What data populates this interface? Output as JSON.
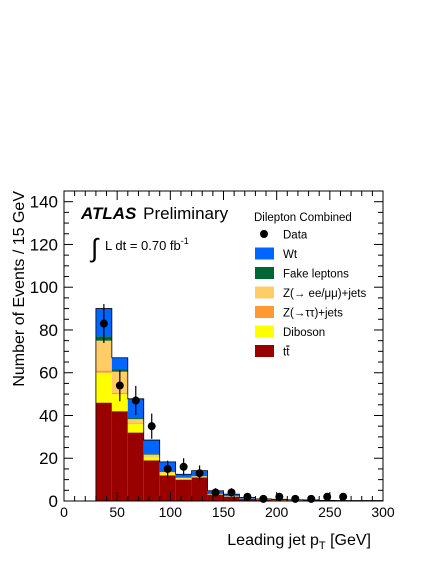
{
  "chart_data": {
    "type": "bar",
    "stacked": true,
    "xlabel_main": "Leading jet p",
    "xlabel_sub": "T",
    "xlabel_unit": " [GeV]",
    "ylabel": "Number of Events / 15 GeV",
    "xlim": [
      0,
      300
    ],
    "ylim": [
      0,
      145
    ],
    "xticks": [
      0,
      50,
      100,
      150,
      200,
      250,
      300
    ],
    "xtick_labels": [
      "0",
      "50",
      "100",
      "150",
      "200",
      "250",
      "300"
    ],
    "yticks": [
      0,
      20,
      40,
      60,
      80,
      100,
      120,
      140
    ],
    "ytick_labels": [
      "0",
      "20",
      "40",
      "60",
      "80",
      "100",
      "120",
      "140"
    ],
    "bin_edges": [
      30,
      45,
      60,
      75,
      90,
      105,
      120,
      135,
      150,
      165,
      180,
      195,
      210,
      225,
      240,
      255,
      270,
      285,
      300
    ],
    "series": [
      {
        "name": "tt",
        "color": "#990000",
        "values": [
          46,
          42,
          32,
          19,
          12,
          10,
          11,
          3,
          2,
          1,
          0.5,
          0.4,
          0.3,
          0.2,
          0.2,
          0.1,
          0.1,
          0.1
        ]
      },
      {
        "name": "Diboson",
        "color": "#ffff00",
        "values": [
          14,
          8,
          4,
          1.5,
          1,
          0.5,
          0.3,
          0.2,
          0.1,
          0.1,
          0.1,
          0.1,
          0.1,
          0.1,
          0,
          0,
          0,
          0
        ]
      },
      {
        "name": "Z(→ττ)+jets",
        "color": "#ff9933",
        "values": [
          1,
          0.5,
          0.3,
          0.2,
          0.1,
          0.1,
          0.1,
          0,
          0,
          0,
          0,
          0,
          0,
          0,
          0,
          0,
          0,
          0
        ]
      },
      {
        "name": "Z(→ ee/μμ)+jets",
        "color": "#ffcc66",
        "values": [
          14,
          10,
          2,
          1,
          0.5,
          0.3,
          0.2,
          0.1,
          0.1,
          0,
          0,
          0,
          0,
          0,
          0,
          0,
          0,
          0
        ]
      },
      {
        "name": "Fake leptons",
        "color": "#006633",
        "values": [
          2,
          1,
          0.5,
          0.3,
          0.2,
          0.1,
          0.1,
          0,
          0,
          0,
          0,
          0,
          0,
          0,
          0,
          0,
          0,
          0
        ]
      },
      {
        "name": "Wt",
        "color": "#0066ff",
        "values": [
          13,
          5.5,
          9,
          6.5,
          4.5,
          1.5,
          2.5,
          1.5,
          1,
          0.6,
          0.4,
          0.3,
          0.2,
          0.2,
          0.1,
          0.1,
          0.1,
          0.1
        ]
      }
    ],
    "data_points": {
      "name": "Data",
      "x": [
        37.5,
        52.5,
        67.5,
        82.5,
        97.5,
        112.5,
        127.5,
        142.5,
        157.5,
        172.5,
        187.5,
        202.5,
        217.5,
        232.5,
        247.5,
        262.5
      ],
      "y": [
        83,
        54,
        47,
        35,
        15,
        16,
        13,
        4,
        4,
        2,
        1,
        2,
        1,
        1,
        2,
        2
      ]
    },
    "legend_title": "Dilepton Combined",
    "legend_order": [
      "Data",
      "Wt",
      "Fake leptons",
      "Z(→ ee/μμ)+jets",
      "Z(→ττ)+jets",
      "Diboson",
      "tt"
    ],
    "legend_placement": "top-right"
  },
  "annotations": {
    "atlas": "ATLAS",
    "preliminary": "Preliminary",
    "integral": "∫",
    "lumi_text": "L dt = 0.70 fb",
    "lumi_exp": "-1"
  }
}
